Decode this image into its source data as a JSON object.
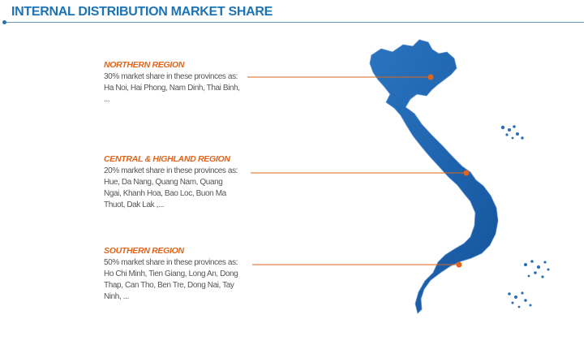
{
  "header": {
    "title": "INTERNAL DISTRIBUTION MARKET SHARE"
  },
  "colors": {
    "title": "#1e73b3",
    "region_name": "#e0651b",
    "map_fill": "#1d64b0",
    "leader_line": "#e0651b"
  },
  "regions": [
    {
      "name": "NORTHERN REGION",
      "share_percent": 30,
      "description": "30% market share in these provinces as: Ha Noi, Hai Phong, Nam Dinh, Thai Binh, ..."
    },
    {
      "name": "CENTRAL & HIGHLAND REGION",
      "share_percent": 20,
      "description": "20% market share in these provinces as: Hue, Da Nang, Quang Nam, Quang Ngai, Khanh Hoa, Bao Loc, Buon Ma Thuot, Dak Lak ,..."
    },
    {
      "name": "SOUTHERN REGION",
      "share_percent": 50,
      "description": "50% market share in these provinces as: Ho Chi Minh, Tien Giang, Long An, Dong Thap, Can Tho, Ben Tre, Dong Nai, Tay Ninh, ..."
    }
  ]
}
